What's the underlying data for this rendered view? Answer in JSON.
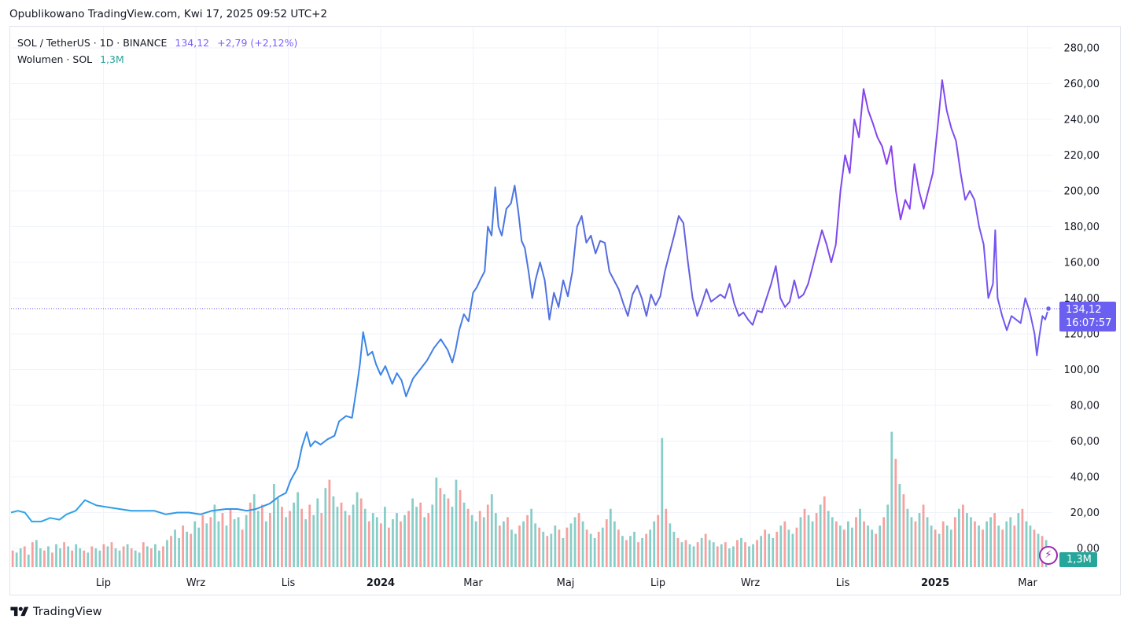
{
  "header": {
    "published": "Opublikowano TradingView.com, Kwi 17, 2025 09:52 UTC+2"
  },
  "legend": {
    "symbol": "SOL / TetherUS · 1D · BINANCE",
    "price": "134,12",
    "change": "+2,79 (+2,12%)",
    "volume_label": "Wolumen · SOL",
    "volume_value": "1,3M"
  },
  "labels": {
    "last_price": "134,12",
    "countdown": "16:07:57",
    "last_volume": "1,3M"
  },
  "brand": {
    "name": "TradingView"
  },
  "colors": {
    "line_start": "#2196f3",
    "line_mid": "#5b6ee0",
    "line_end": "#b22ff0",
    "vol_up": "#26a69a",
    "vol_down": "#ef5350",
    "price_label_bg": "#6a5ff0",
    "vol_label_bg": "#26a69a"
  },
  "chart_data": {
    "type": "line",
    "title": "SOL / TetherUS · 1D · BINANCE",
    "ylabel": "",
    "xlabel": "",
    "ylim": [
      -6,
      288
    ],
    "y_ticks": [
      0,
      20,
      40,
      60,
      80,
      100,
      120,
      140,
      160,
      180,
      200,
      220,
      240,
      260,
      280
    ],
    "y_tick_labels": [
      "0,00",
      "20,00",
      "40,00",
      "60,00",
      "80,00",
      "100,00",
      "120,00",
      "140,00",
      "160,00",
      "180,00",
      "200,00",
      "220,00",
      "240,00",
      "260,00",
      "280,00"
    ],
    "x_range_months": [
      0,
      22.45
    ],
    "x_ticks": [
      {
        "label": "Lip",
        "month": 2.0,
        "bold": false
      },
      {
        "label": "Wrz",
        "month": 4.0,
        "bold": false
      },
      {
        "label": "Lis",
        "month": 6.0,
        "bold": false
      },
      {
        "label": "2024",
        "month": 8.0,
        "bold": true
      },
      {
        "label": "Mar",
        "month": 10.0,
        "bold": false
      },
      {
        "label": "Maj",
        "month": 12.0,
        "bold": false
      },
      {
        "label": "Lip",
        "month": 14.0,
        "bold": false
      },
      {
        "label": "Wrz",
        "month": 16.0,
        "bold": false
      },
      {
        "label": "Lis",
        "month": 18.0,
        "bold": false
      },
      {
        "label": "2025",
        "month": 20.0,
        "bold": true
      },
      {
        "label": "Mar",
        "month": 22.0,
        "bold": false
      }
    ],
    "series": [
      {
        "name": "SOL / TetherUS close",
        "points": [
          [
            0.0,
            20
          ],
          [
            0.15,
            21
          ],
          [
            0.3,
            20
          ],
          [
            0.45,
            15
          ],
          [
            0.65,
            15
          ],
          [
            0.85,
            17
          ],
          [
            1.05,
            16
          ],
          [
            1.2,
            19
          ],
          [
            1.4,
            21
          ],
          [
            1.6,
            27
          ],
          [
            1.85,
            24
          ],
          [
            2.1,
            23
          ],
          [
            2.35,
            22
          ],
          [
            2.6,
            21
          ],
          [
            2.85,
            21
          ],
          [
            3.1,
            21
          ],
          [
            3.35,
            19
          ],
          [
            3.6,
            20
          ],
          [
            3.85,
            20
          ],
          [
            4.1,
            19
          ],
          [
            4.35,
            21
          ],
          [
            4.65,
            22
          ],
          [
            4.9,
            22
          ],
          [
            5.1,
            21
          ],
          [
            5.3,
            22
          ],
          [
            5.6,
            25
          ],
          [
            5.8,
            29
          ],
          [
            5.95,
            31
          ],
          [
            6.05,
            38
          ],
          [
            6.2,
            45
          ],
          [
            6.3,
            57
          ],
          [
            6.4,
            65
          ],
          [
            6.48,
            57
          ],
          [
            6.58,
            60
          ],
          [
            6.7,
            58
          ],
          [
            6.85,
            61
          ],
          [
            7.0,
            63
          ],
          [
            7.1,
            71
          ],
          [
            7.25,
            74
          ],
          [
            7.38,
            73
          ],
          [
            7.48,
            90
          ],
          [
            7.55,
            103
          ],
          [
            7.62,
            121
          ],
          [
            7.72,
            108
          ],
          [
            7.82,
            110
          ],
          [
            7.9,
            103
          ],
          [
            8.0,
            97
          ],
          [
            8.1,
            102
          ],
          [
            8.25,
            92
          ],
          [
            8.35,
            98
          ],
          [
            8.45,
            94
          ],
          [
            8.55,
            85
          ],
          [
            8.7,
            95
          ],
          [
            8.85,
            100
          ],
          [
            9.0,
            105
          ],
          [
            9.15,
            112
          ],
          [
            9.3,
            117
          ],
          [
            9.45,
            111
          ],
          [
            9.55,
            104
          ],
          [
            9.62,
            111
          ],
          [
            9.7,
            122
          ],
          [
            9.8,
            131
          ],
          [
            9.9,
            127
          ],
          [
            10.0,
            143
          ],
          [
            10.08,
            146
          ],
          [
            10.15,
            150
          ],
          [
            10.25,
            155
          ],
          [
            10.32,
            180
          ],
          [
            10.4,
            175
          ],
          [
            10.48,
            202
          ],
          [
            10.55,
            180
          ],
          [
            10.62,
            175
          ],
          [
            10.72,
            190
          ],
          [
            10.82,
            193
          ],
          [
            10.9,
            203
          ],
          [
            10.98,
            188
          ],
          [
            11.05,
            172
          ],
          [
            11.12,
            168
          ],
          [
            11.2,
            155
          ],
          [
            11.28,
            140
          ],
          [
            11.35,
            150
          ],
          [
            11.45,
            160
          ],
          [
            11.55,
            150
          ],
          [
            11.65,
            128
          ],
          [
            11.75,
            143
          ],
          [
            11.85,
            135
          ],
          [
            11.95,
            150
          ],
          [
            12.05,
            141
          ],
          [
            12.15,
            155
          ],
          [
            12.25,
            180
          ],
          [
            12.35,
            186
          ],
          [
            12.45,
            171
          ],
          [
            12.55,
            175
          ],
          [
            12.65,
            165
          ],
          [
            12.75,
            172
          ],
          [
            12.85,
            171
          ],
          [
            12.95,
            155
          ],
          [
            13.05,
            150
          ],
          [
            13.15,
            145
          ],
          [
            13.25,
            137
          ],
          [
            13.35,
            130
          ],
          [
            13.45,
            142
          ],
          [
            13.55,
            147
          ],
          [
            13.65,
            140
          ],
          [
            13.75,
            130
          ],
          [
            13.85,
            142
          ],
          [
            13.95,
            136
          ],
          [
            14.05,
            141
          ],
          [
            14.15,
            155
          ],
          [
            14.25,
            165
          ],
          [
            14.35,
            175
          ],
          [
            14.45,
            186
          ],
          [
            14.55,
            182
          ],
          [
            14.65,
            160
          ],
          [
            14.75,
            140
          ],
          [
            14.85,
            130
          ],
          [
            14.95,
            137
          ],
          [
            15.05,
            145
          ],
          [
            15.15,
            138
          ],
          [
            15.25,
            140
          ],
          [
            15.35,
            142
          ],
          [
            15.45,
            140
          ],
          [
            15.55,
            148
          ],
          [
            15.65,
            137
          ],
          [
            15.75,
            130
          ],
          [
            15.85,
            132
          ],
          [
            15.95,
            128
          ],
          [
            16.05,
            125
          ],
          [
            16.15,
            133
          ],
          [
            16.25,
            132
          ],
          [
            16.35,
            140
          ],
          [
            16.45,
            148
          ],
          [
            16.55,
            158
          ],
          [
            16.65,
            140
          ],
          [
            16.75,
            135
          ],
          [
            16.85,
            138
          ],
          [
            16.95,
            150
          ],
          [
            17.05,
            140
          ],
          [
            17.15,
            142
          ],
          [
            17.25,
            148
          ],
          [
            17.35,
            158
          ],
          [
            17.45,
            168
          ],
          [
            17.55,
            178
          ],
          [
            17.65,
            170
          ],
          [
            17.75,
            160
          ],
          [
            17.85,
            170
          ],
          [
            17.95,
            200
          ],
          [
            18.05,
            220
          ],
          [
            18.15,
            210
          ],
          [
            18.25,
            240
          ],
          [
            18.35,
            230
          ],
          [
            18.45,
            257
          ],
          [
            18.55,
            245
          ],
          [
            18.65,
            238
          ],
          [
            18.75,
            230
          ],
          [
            18.85,
            225
          ],
          [
            18.95,
            215
          ],
          [
            19.05,
            225
          ],
          [
            19.15,
            200
          ],
          [
            19.25,
            184
          ],
          [
            19.35,
            195
          ],
          [
            19.45,
            190
          ],
          [
            19.55,
            215
          ],
          [
            19.65,
            200
          ],
          [
            19.75,
            190
          ],
          [
            19.85,
            200
          ],
          [
            19.95,
            210
          ],
          [
            20.05,
            235
          ],
          [
            20.15,
            262
          ],
          [
            20.25,
            245
          ],
          [
            20.35,
            235
          ],
          [
            20.45,
            228
          ],
          [
            20.55,
            210
          ],
          [
            20.65,
            195
          ],
          [
            20.75,
            200
          ],
          [
            20.85,
            195
          ],
          [
            20.95,
            180
          ],
          [
            21.05,
            170
          ],
          [
            21.15,
            140
          ],
          [
            21.25,
            148
          ],
          [
            21.3,
            178
          ],
          [
            21.35,
            140
          ],
          [
            21.45,
            130
          ],
          [
            21.55,
            122
          ],
          [
            21.65,
            130
          ],
          [
            21.75,
            128
          ],
          [
            21.85,
            126
          ],
          [
            21.95,
            140
          ],
          [
            22.05,
            132
          ],
          [
            22.15,
            120
          ],
          [
            22.2,
            108
          ],
          [
            22.25,
            118
          ],
          [
            22.32,
            130
          ],
          [
            22.38,
            128
          ],
          [
            22.45,
            134.12
          ]
        ]
      },
      {
        "name": "Wolumen · SOL",
        "values": [
          8,
          7,
          9,
          10,
          6,
          12,
          13,
          9,
          8,
          10,
          7,
          11,
          9,
          12,
          10,
          8,
          11,
          9,
          8,
          7,
          10,
          9,
          8,
          11,
          10,
          12,
          9,
          8,
          10,
          11,
          9,
          8,
          7,
          12,
          10,
          9,
          11,
          8,
          10,
          13,
          15,
          18,
          14,
          20,
          17,
          16,
          22,
          19,
          25,
          21,
          24,
          30,
          22,
          26,
          20,
          28,
          23,
          24,
          18,
          25,
          31,
          35,
          27,
          30,
          22,
          26,
          40,
          33,
          29,
          24,
          27,
          31,
          36,
          28,
          23,
          30,
          25,
          33,
          26,
          38,
          42,
          34,
          29,
          31,
          27,
          25,
          30,
          36,
          33,
          28,
          22,
          26,
          24,
          21,
          29,
          19,
          23,
          26,
          22,
          25,
          27,
          33,
          29,
          31,
          24,
          26,
          30,
          43,
          38,
          35,
          33,
          29,
          42,
          37,
          31,
          28,
          25,
          22,
          27,
          24,
          30,
          35,
          26,
          20,
          22,
          24,
          18,
          16,
          20,
          22,
          25,
          28,
          21,
          19,
          17,
          15,
          16,
          20,
          18,
          14,
          19,
          21,
          24,
          26,
          22,
          18,
          16,
          14,
          17,
          19,
          23,
          28,
          22,
          18,
          15,
          13,
          15,
          17,
          12,
          14,
          16,
          18,
          22,
          25,
          62,
          28,
          21,
          17,
          14,
          12,
          13,
          11,
          10,
          12,
          14,
          16,
          13,
          12,
          10,
          11,
          12,
          9,
          10,
          13,
          14,
          12,
          10,
          11,
          13,
          15,
          18,
          16,
          14,
          17,
          20,
          22,
          18,
          16,
          19,
          24,
          28,
          25,
          22,
          26,
          30,
          34,
          27,
          24,
          22,
          20,
          18,
          22,
          19,
          24,
          28,
          22,
          20,
          18,
          16,
          20,
          24,
          30,
          65,
          52,
          40,
          35,
          28,
          24,
          22,
          26,
          30,
          24,
          20,
          18,
          16,
          22,
          20,
          18,
          24,
          28,
          30,
          26,
          24,
          22,
          20,
          18,
          22,
          24,
          26,
          20,
          18,
          22,
          24,
          20,
          26,
          28,
          22,
          20,
          18,
          16,
          15,
          13
        ],
        "colors_hint": "alternating up/down"
      }
    ],
    "last_price": 134.12
  }
}
